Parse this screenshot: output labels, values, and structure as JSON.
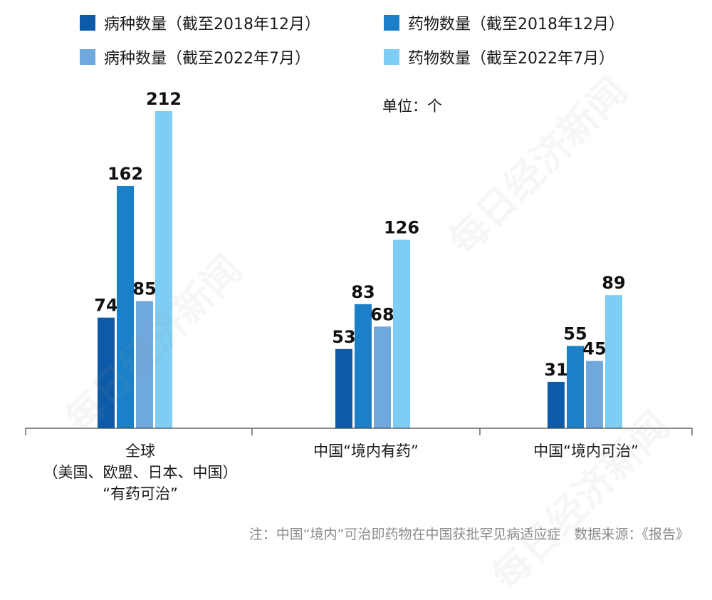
{
  "legend": {
    "items": [
      {
        "label": "病种数量（截至2018年12月）",
        "color": "#0d5ba8"
      },
      {
        "label": "药物数量（截至2018年12月）",
        "color": "#1b80c7"
      },
      {
        "label": "病种数量（截至2022年7月）",
        "color": "#6ea8dd"
      },
      {
        "label": "药物数量（截至2022年7月）",
        "color": "#7dcdf4"
      }
    ]
  },
  "unit": "单位：个",
  "footnote": "注：中国“境内”可治即药物在中国获批罕见病适应症　数据来源：《报告》",
  "watermark": "每日经济新闻",
  "chart_data": {
    "type": "bar",
    "categories": [
      "全球\n（美国、欧盟、日本、中国）\n“有药可治”",
      "中国“境内有药”",
      "中国“境内可治”"
    ],
    "series": [
      {
        "name": "病种数量（截至2018年12月）",
        "values": [
          74,
          53,
          31
        ],
        "color": "#0d5ba8"
      },
      {
        "name": "药物数量（截至2018年12月）",
        "values": [
          162,
          83,
          55
        ],
        "color": "#1b80c7"
      },
      {
        "name": "病种数量（截至2022年7月）",
        "values": [
          85,
          68,
          45
        ],
        "color": "#6ea8dd"
      },
      {
        "name": "药物数量（截至2022年7月）",
        "values": [
          212,
          126,
          89
        ],
        "color": "#7dcdf4"
      }
    ],
    "unit": "单位：个",
    "ylim": [
      0,
      212
    ],
    "legend_position": "top",
    "grid": false
  }
}
